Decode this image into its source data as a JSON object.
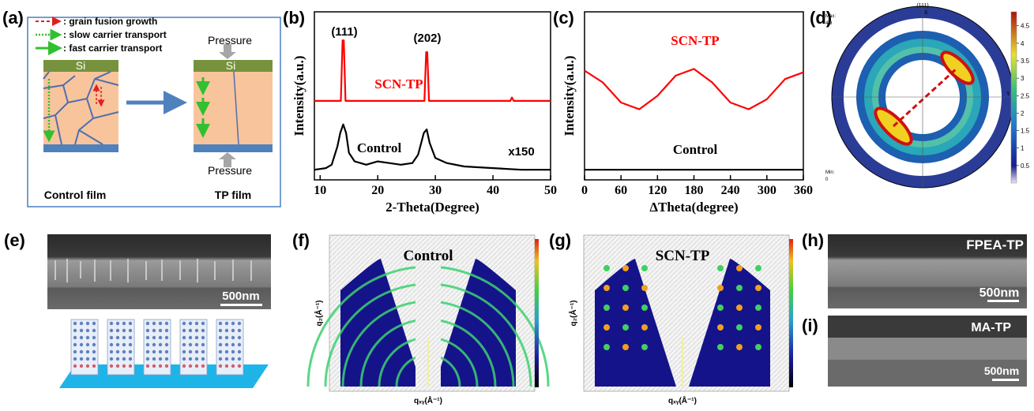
{
  "figure": {
    "panel_labels": [
      "(a)",
      "(b)",
      "(c)",
      "(d)",
      "(e)",
      "(f)",
      "(g)",
      "(h)",
      "(i)"
    ],
    "a": {
      "legend": [
        ": grain fusion growth",
        ": slow carrier transport",
        ": fast carrier transport"
      ],
      "layer": "Si",
      "pressure": "Pressure",
      "left_caption": "Control film",
      "right_caption": "TP film"
    },
    "d": {
      "pole": "(111)",
      "axis_x": "X",
      "axis_y": "Y",
      "max_label": "Max:",
      "max": 4.9,
      "min_label": "Min:",
      "min": 0,
      "colorbar_ticks": [
        0.5,
        1,
        1.5,
        2,
        2.5,
        3,
        3.5,
        4,
        4.5
      ]
    },
    "e": {
      "scale": "500nm"
    },
    "f": {
      "title": "Control",
      "y_label": "q₂(Å⁻¹)",
      "x_label": "qₓᵧ(Å⁻¹)"
    },
    "g": {
      "title": "SCN-TP",
      "y_label": "q₂(Å⁻¹)",
      "x_label": "qₓᵧ(Å⁻¹)"
    },
    "h": {
      "title": "FPEA-TP",
      "scale": "500nm"
    },
    "i": {
      "title": "MA-TP",
      "scale": "500nm"
    }
  },
  "chart_data": [
    {
      "type": "line",
      "x_label": "2-Theta(Degree)",
      "y_label": "Intensity(a.u.)",
      "xlim": [
        9,
        50
      ],
      "xticks": [
        10,
        20,
        30,
        40,
        50
      ],
      "ylim": [
        0,
        100
      ],
      "annotations": [
        "(111)",
        "(202)",
        "x150"
      ],
      "series": [
        {
          "name": "SCN-TP",
          "color": "#ff0000",
          "x": [
            9,
            13.6,
            13.9,
            14.1,
            14.4,
            28.1,
            28.4,
            28.6,
            28.9,
            43,
            43.3,
            43.6,
            50
          ],
          "values": [
            47,
            47,
            83,
            83,
            47,
            47,
            76,
            76,
            47,
            47,
            49,
            47,
            47
          ]
        },
        {
          "name": "Control",
          "color": "#000000",
          "x": [
            9,
            11,
            12,
            13,
            13.5,
            14,
            14.5,
            15,
            16,
            18,
            20,
            22,
            24,
            26,
            27,
            28,
            28.5,
            29,
            30,
            32,
            35,
            40,
            45,
            50
          ],
          "values": [
            6,
            7,
            9,
            20,
            28,
            33,
            28,
            16,
            11,
            9,
            11,
            10,
            9,
            10,
            15,
            28,
            30,
            22,
            13,
            10,
            8,
            7,
            6,
            6
          ]
        }
      ]
    },
    {
      "type": "line",
      "x_label": "ΔTheta(degree)",
      "y_label": "Intensity(a.u.)",
      "xlim": [
        0,
        360
      ],
      "xticks": [
        0,
        60,
        120,
        180,
        240,
        300,
        360
      ],
      "ylim": [
        0,
        100
      ],
      "series": [
        {
          "name": "SCN-TP",
          "color": "#ff0000",
          "x": [
            0,
            30,
            60,
            90,
            120,
            150,
            180,
            210,
            240,
            270,
            300,
            330,
            360
          ],
          "values": [
            65,
            58,
            46,
            42,
            50,
            62,
            66,
            58,
            46,
            42,
            48,
            60,
            64
          ]
        },
        {
          "name": "Control",
          "color": "#000000",
          "x": [
            0,
            30,
            60,
            90,
            120,
            150,
            180,
            210,
            240,
            270,
            300,
            330,
            360
          ],
          "values": [
            6,
            6,
            6,
            6,
            6,
            6,
            6,
            6,
            6,
            6,
            6,
            6,
            6
          ]
        }
      ]
    }
  ]
}
